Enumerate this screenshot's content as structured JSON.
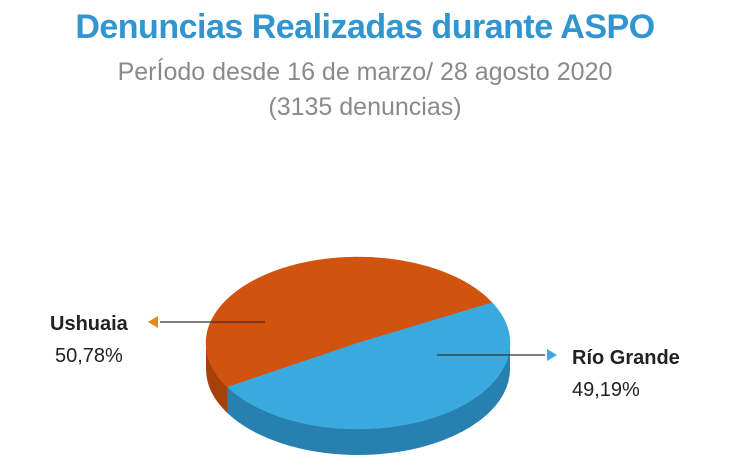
{
  "chart_data": {
    "type": "pie",
    "title": "Denuncias Realizadas durante ASPO",
    "subtitle_line1": "PerÍodo desde 16 de marzo/ 28 agosto 2020",
    "subtitle_line2": "(3135 denuncias)",
    "slices": [
      {
        "label": "Ushuaia",
        "value": 50.78,
        "display": "50,78%",
        "color": "#d2530d",
        "side_color": "#a8400a",
        "arrow_color": "#e08a1e"
      },
      {
        "label": "Río Grande",
        "value": 49.19,
        "display": "49,19%",
        "color": "#3aa9de",
        "side_color": "#2780b0",
        "arrow_color": "#3aa9de"
      }
    ],
    "style": "3d-pie"
  }
}
